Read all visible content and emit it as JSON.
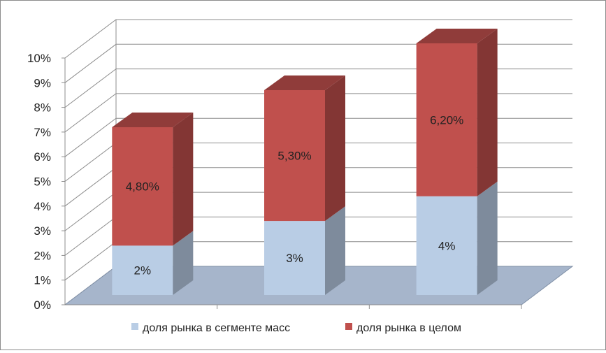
{
  "chart_data": {
    "type": "bar",
    "stacked": true,
    "three_d": true,
    "categories": [
      "",
      "",
      ""
    ],
    "series": [
      {
        "name": "доля рынка в сегменте масс",
        "values": [
          2,
          3,
          4
        ],
        "labels": [
          "2%",
          "3%",
          "4%"
        ],
        "color": "#b9cde5"
      },
      {
        "name": "доля рынка в целом",
        "values": [
          4.8,
          5.3,
          6.2
        ],
        "labels": [
          "4,80%",
          "5,30%",
          "6,20%"
        ],
        "color": "#c0504d"
      }
    ],
    "ylim": [
      0,
      10
    ],
    "yticks": [
      "0%",
      "1%",
      "2%",
      "3%",
      "4%",
      "5%",
      "6%",
      "7%",
      "8%",
      "9%",
      "10%"
    ],
    "grid": true,
    "legend_position": "bottom",
    "floor_color": "#a6b5cb"
  }
}
